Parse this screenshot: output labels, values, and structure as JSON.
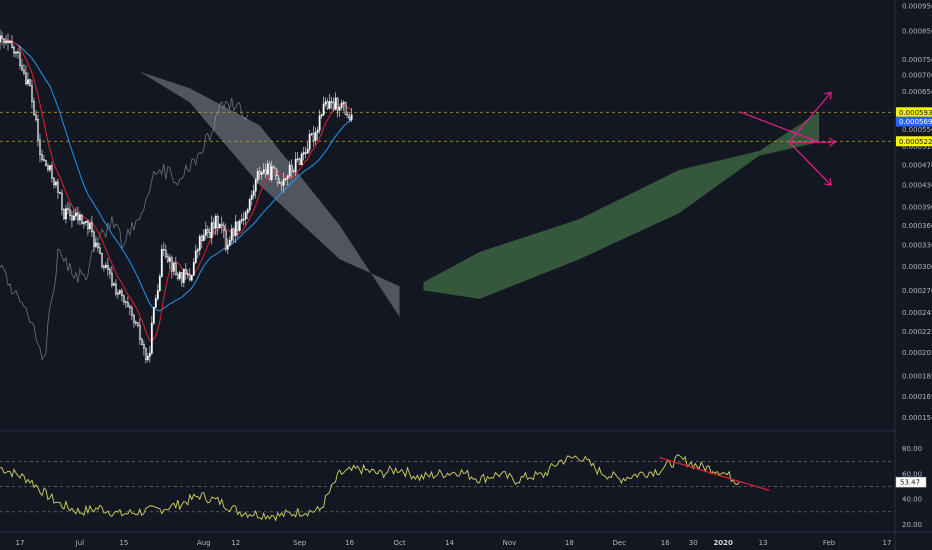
{
  "chart_data": {
    "type": "candlestick",
    "panels": [
      {
        "name": "price",
        "ylim": [
          0.000145,
          0.000975
        ],
        "y_ticks": [
          "0.0009500",
          "0.0008500",
          "0.0007500",
          "0.0007000",
          "0.0006500",
          "0.0005500",
          "0.0005100",
          "0.0004700",
          "0.0004300",
          "0.0003900",
          "0.0003600",
          "0.0003300",
          "0.0003000",
          "0.0002700",
          "0.0002450",
          "0.0002250",
          "0.0002050",
          "0.0001850",
          "0.0001690",
          "0.0001540"
        ],
        "y_tick_values": [
          0.00095,
          0.00085,
          0.00075,
          0.0007,
          0.00065,
          0.00055,
          0.00051,
          0.00047,
          0.00043,
          0.00039,
          0.00036,
          0.00033,
          0.0003,
          0.00027,
          0.000245,
          0.000225,
          0.000205,
          0.000185,
          0.000169,
          0.000154
        ],
        "price_labels": [
          {
            "text": "0.0005935",
            "value": 0.0005935,
            "color": "#f5f509"
          },
          {
            "text": "0.0005695",
            "value": 0.0005695,
            "color": "#2962ff"
          },
          {
            "text": "0.0005221",
            "value": 0.0005221,
            "color": "#f5f509"
          }
        ],
        "horizontal_lines": [
          0.0005935,
          0.0005221
        ],
        "price_anchors": {
          "x": [
            0,
            5,
            10,
            15,
            20,
            27,
            32,
            40,
            45,
            50,
            55,
            62,
            70,
            74,
            82,
            88,
            95,
            100,
            106,
            110,
            113,
            118,
            124,
            130,
            136,
            141,
            148,
            153,
            158,
            162,
            165,
            170,
            176
          ],
          "y": [
            0.00081,
            0.00079,
            0.00075,
            0.00066,
            0.00049,
            0.00044,
            0.00038,
            0.00037,
            0.000355,
            0.00031,
            0.000285,
            0.000255,
            0.00022,
            0.000195,
            0.00033,
            0.00029,
            0.000285,
            0.000335,
            0.000355,
            0.00037,
            0.00033,
            0.00036,
            0.000385,
            0.00046,
            0.000455,
            0.00044,
            0.00047,
            0.000505,
            0.000545,
            0.00062,
            0.000605,
            0.00062,
            0.00057
          ]
        },
        "ichimoku_cloud": {
          "color_bearish": "#5d606b",
          "color_bullish": "#3a5e3e",
          "bearish_upper": [
            [
              70,
              0.00071
            ],
            [
              95,
              0.00062
            ],
            [
              130,
              0.00043
            ],
            [
              170,
              0.00031
            ],
            [
              200,
              0.000275
            ]
          ],
          "bearish_lower": [
            [
              70,
              0.00071
            ],
            [
              95,
              0.00066
            ],
            [
              130,
              0.00056
            ],
            [
              170,
              0.00036
            ],
            [
              200,
              0.00024
            ]
          ],
          "bullish_upper": [
            [
              212,
              0.00028
            ],
            [
              240,
              0.00032
            ],
            [
              290,
              0.00037
            ],
            [
              340,
              0.00046
            ],
            [
              380,
              0.0005
            ],
            [
              410,
              0.000595
            ]
          ],
          "bullish_lower": [
            [
              212,
              0.00027
            ],
            [
              240,
              0.00026
            ],
            [
              290,
              0.00031
            ],
            [
              340,
              0.00038
            ],
            [
              380,
              0.00049
            ],
            [
              410,
              0.00052
            ]
          ]
        },
        "drawings": {
          "color": "#e91e8c",
          "lines": [
            [
              [
                370,
                0.000595
              ],
              [
                410,
                0.00052
              ]
            ],
            [
              [
                395,
                0.00052
              ],
              [
                416,
                0.000648
              ]
            ],
            [
              [
                395,
                0.00052
              ],
              [
                416,
                0.00043
              ]
            ],
            [
              [
                395,
                0.00052
              ],
              [
                418,
                0.00052
              ]
            ]
          ]
        }
      },
      {
        "name": "oscillator",
        "ylim": [
          14,
          94
        ],
        "y_ticks": [
          "80.00",
          "60.00",
          "40.00",
          "20.00"
        ],
        "y_tick_values": [
          80,
          60,
          40,
          20
        ],
        "dashed_levels": [
          70,
          50,
          30
        ],
        "last_value_label": "53.47",
        "line_color": "#d4d45f",
        "trendline": {
          "color": "#e0202f",
          "points": [
            [
              330,
              73
            ],
            [
              385,
              47
            ]
          ]
        },
        "osc_anchors": {
          "x": [
            0,
            8,
            15,
            22,
            30,
            40,
            50,
            60,
            70,
            80,
            90,
            100,
            110,
            120,
            130,
            140,
            150,
            160,
            170,
            180,
            190,
            200,
            210,
            220,
            230,
            240,
            250,
            258,
            265,
            272,
            280,
            290,
            300,
            310,
            320,
            330,
            340,
            350,
            360,
            370
          ],
          "y": [
            65,
            60,
            55,
            45,
            36,
            30,
            33,
            28,
            30,
            32,
            36,
            43,
            38,
            30,
            28,
            27,
            30,
            31,
            60,
            64,
            60,
            64,
            57,
            60,
            62,
            56,
            60,
            55,
            58,
            59,
            70,
            74,
            62,
            56,
            60,
            63,
            72,
            66,
            63,
            53.47
          ]
        }
      }
    ],
    "x_axis": {
      "labels": [
        {
          "text": "17",
          "bar": 10
        },
        {
          "text": "Jul",
          "bar": 40
        },
        {
          "text": "15",
          "bar": 62
        },
        {
          "text": "Aug",
          "bar": 102
        },
        {
          "text": "12",
          "bar": 118
        },
        {
          "text": "Sep",
          "bar": 150
        },
        {
          "text": "16",
          "bar": 175
        },
        {
          "text": "Oct",
          "bar": 200
        },
        {
          "text": "14",
          "bar": 225
        },
        {
          "text": "Nov",
          "bar": 255
        },
        {
          "text": "18",
          "bar": 285
        },
        {
          "text": "Dec",
          "bar": 310
        },
        {
          "text": "16",
          "bar": 333
        },
        {
          "text": "30",
          "bar": 347
        },
        {
          "text": "2020",
          "bar": 362,
          "bold": true
        },
        {
          "text": "13",
          "bar": 382
        },
        {
          "text": "Feb",
          "bar": 415
        },
        {
          "text": "17",
          "bar": 444
        }
      ],
      "bar_range": [
        0,
        448
      ]
    },
    "colors": {
      "background": "#131722",
      "grid_line": "#2a2e39",
      "candle_up": "#ffffff",
      "candle_down": "#ffffff",
      "tenkan": "#e0202f",
      "kijun": "#2196f3",
      "chikou": "#9598a1",
      "dashed_line": "#c9a227"
    }
  }
}
